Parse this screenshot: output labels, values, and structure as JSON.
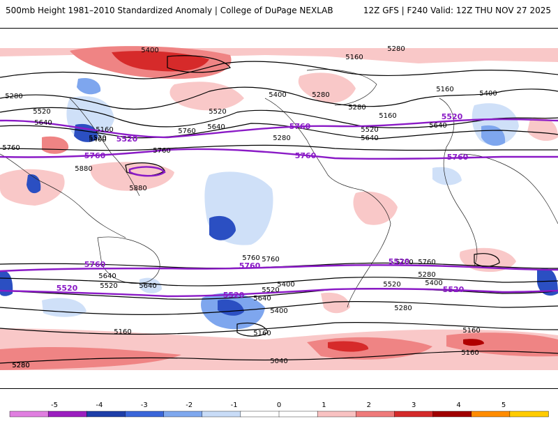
{
  "header": {
    "title": "500mb Height 1981–2010 Standardized Anomaly | College of DuPage NEXLAB",
    "run": "12Z GFS | F240 Valid: 12Z THU NOV 27 2025"
  },
  "colorbar": {
    "ticks": [
      "-5",
      "-4",
      "-3",
      "-2",
      "-1",
      "0",
      "1",
      "2",
      "3",
      "4",
      "5"
    ],
    "colors": [
      "#e07fe0",
      "#9b1fbf",
      "#1e3ea8",
      "#3a66d9",
      "#7fa8ee",
      "#c9dcf7",
      "#ffffff",
      "#ffffff",
      "#f9c2c2",
      "#ef7a7a",
      "#d42a2a",
      "#a00000",
      "#ff8c00",
      "#ffcc00"
    ]
  },
  "colors": {
    "contour": "#000000",
    "highlight_contour": "#8a1ac6",
    "pos_anom_1": "#f9c8c8",
    "pos_anom_2": "#ef8484",
    "pos_anom_3": "#d62a2a",
    "neg_anom_1": "#cfe0f8",
    "neg_anom_2": "#7ea6ee",
    "neg_anom_3": "#2b4fc2",
    "coast": "#222222"
  },
  "contour_labels": {
    "black": [
      "5400",
      "5160",
      "5280",
      "5280",
      "5520",
      "5640",
      "5400",
      "5520",
      "5640",
      "5280",
      "5160",
      "5760",
      "5880",
      "5880",
      "5760",
      "5520",
      "5640",
      "5160",
      "5520",
      "5640",
      "5760",
      "5280",
      "5400",
      "5160",
      "5400",
      "5280",
      "5760",
      "5400",
      "5520",
      "5640",
      "5760",
      "5520",
      "5640",
      "5400",
      "5160",
      "5040",
      "5160",
      "5280",
      "5280",
      "5160",
      "5640",
      "5400",
      "5520",
      "5760",
      "5280",
      "5160",
      "5280",
      "5760"
    ],
    "purple": [
      "5760",
      "5520",
      "5520",
      "5760",
      "5520",
      "5760",
      "5760",
      "5760",
      "5760",
      "5520",
      "5520",
      "5520"
    ]
  }
}
